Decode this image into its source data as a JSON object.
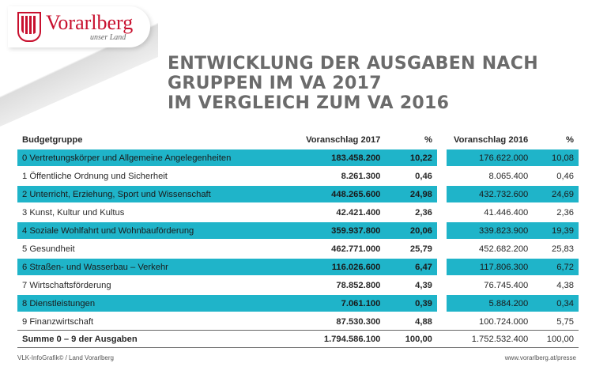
{
  "logo": {
    "name": "Vorarlberg",
    "tagline": "unser Land"
  },
  "title": {
    "line1": "ENTWICKLUNG DER AUSGABEN NACH",
    "line2": "GRUPPEN IM VA 2017",
    "line3": "IM VERGLEICH ZUM VA 2016"
  },
  "table": {
    "headers": {
      "group": "Budgetgruppe",
      "va2017": "Voranschlag 2017",
      "pct2017": "%",
      "va2016": "Voranschlag 2016",
      "pct2016": "%"
    },
    "rows": [
      {
        "group": "0  Vertretungskörper und Allgemeine Angelegenheiten",
        "va2017": "183.458.200",
        "pct2017": "10,22",
        "va2016": "176.622.000",
        "pct2016": "10,08"
      },
      {
        "group": "1  Öffentliche Ordnung und Sicherheit",
        "va2017": "8.261.300",
        "pct2017": "0,46",
        "va2016": "8.065.400",
        "pct2016": "0,46"
      },
      {
        "group": "2  Unterricht, Erziehung, Sport und Wissenschaft",
        "va2017": "448.265.600",
        "pct2017": "24,98",
        "va2016": "432.732.600",
        "pct2016": "24,69"
      },
      {
        "group": "3  Kunst, Kultur und Kultus",
        "va2017": "42.421.400",
        "pct2017": "2,36",
        "va2016": "41.446.400",
        "pct2016": "2,36"
      },
      {
        "group": "4  Soziale Wohlfahrt und Wohnbauförderung",
        "va2017": "359.937.800",
        "pct2017": "20,06",
        "va2016": "339.823.900",
        "pct2016": "19,39"
      },
      {
        "group": "5  Gesundheit",
        "va2017": "462.771.000",
        "pct2017": "25,79",
        "va2016": "452.682.200",
        "pct2016": "25,83"
      },
      {
        "group": "6  Straßen- und Wasserbau – Verkehr",
        "va2017": "116.026.600",
        "pct2017": "6,47",
        "va2016": "117.806.300",
        "pct2016": "6,72"
      },
      {
        "group": "7  Wirtschaftsförderung",
        "va2017": "78.852.800",
        "pct2017": "4,39",
        "va2016": "76.745.400",
        "pct2016": "4,38"
      },
      {
        "group": "8  Dienstleistungen",
        "va2017": "7.061.100",
        "pct2017": "0,39",
        "va2016": "5.884.200",
        "pct2016": "0,34"
      },
      {
        "group": "9  Finanzwirtschaft",
        "va2017": "87.530.300",
        "pct2017": "4,88",
        "va2016": "100.724.000",
        "pct2016": "5,75"
      }
    ],
    "sum": {
      "group": "Summe 0 – 9 der Ausgaben",
      "va2017": "1.794.586.100",
      "pct2017": "100,00",
      "va2016": "1.752.532.400",
      "pct2016": "100,00"
    }
  },
  "footer": {
    "left": "VLK-InfoGrafik©   /   Land Vorarlberg",
    "right": "www.vorarlberg.at/presse"
  },
  "colors": {
    "highlight": "#1fb4c9",
    "brand_red": "#c8102e",
    "title_gray": "#6b6b6b"
  }
}
